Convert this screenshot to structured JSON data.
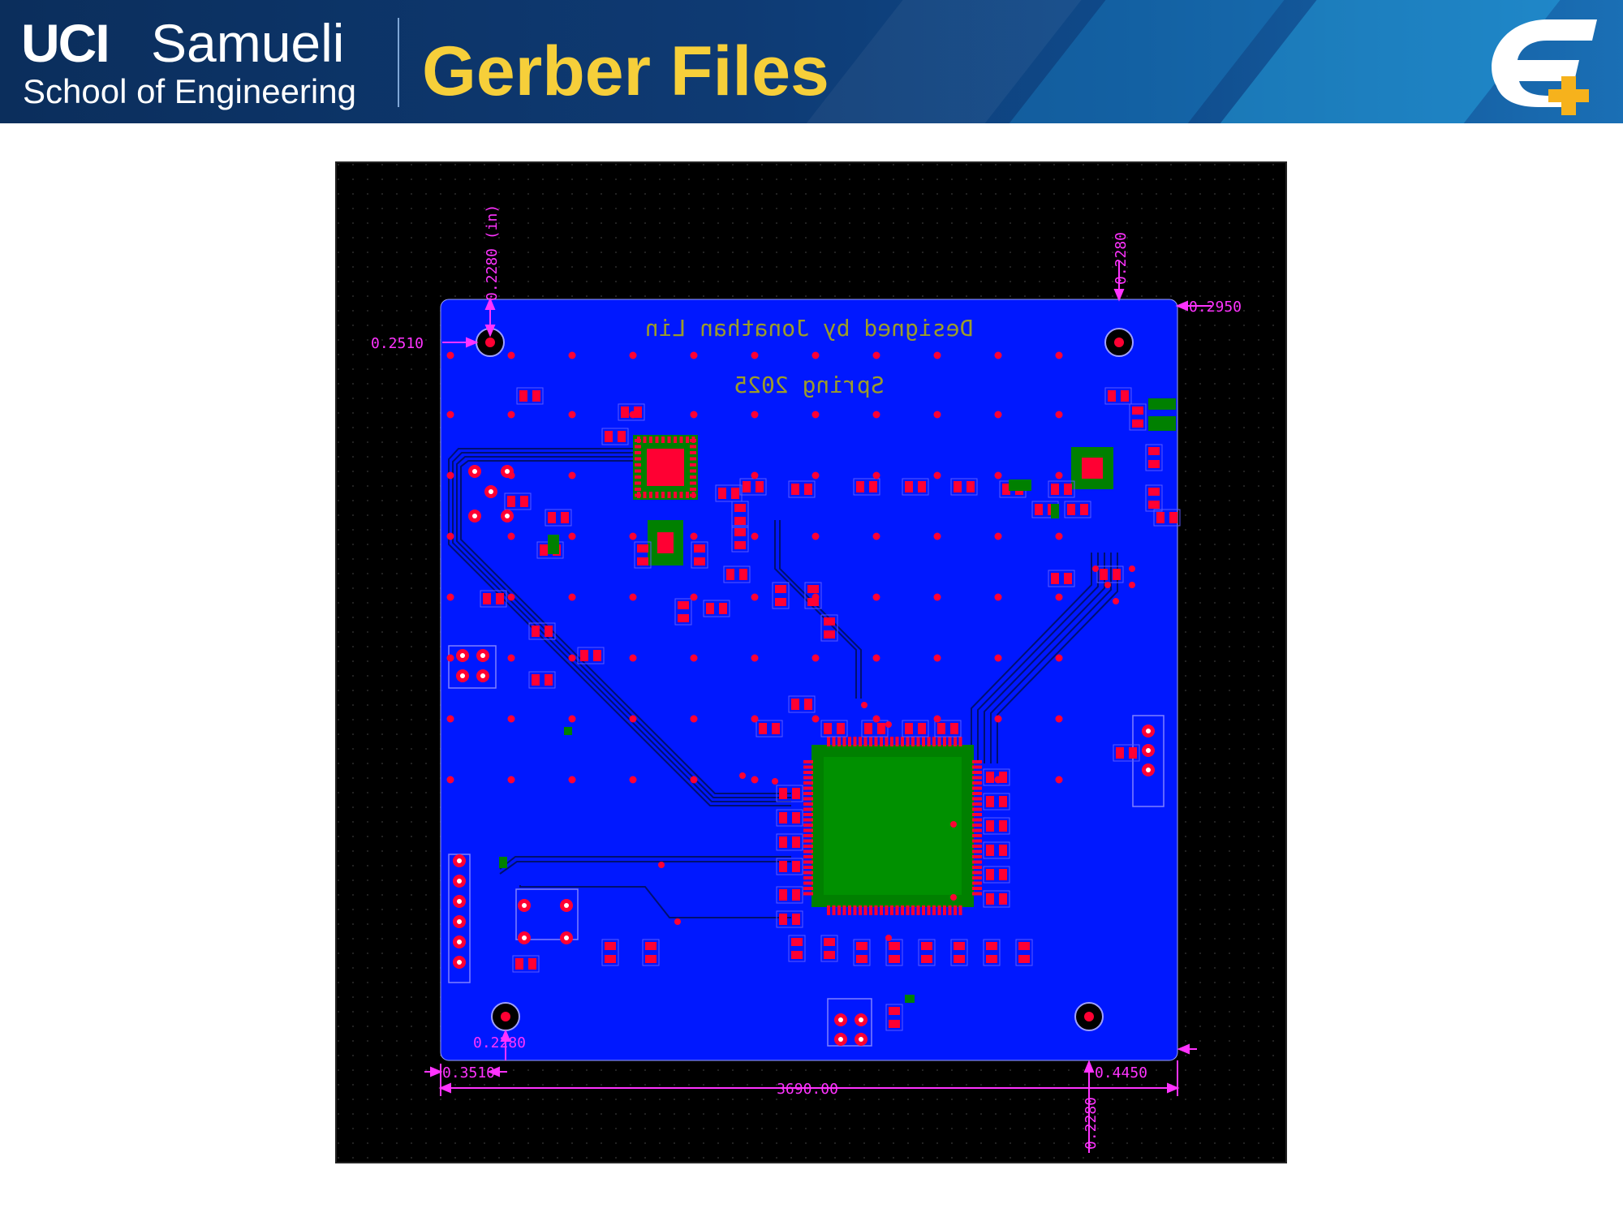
{
  "header": {
    "brand_uci": "UCI",
    "brand_samueli": "Samueli",
    "brand_school": "School of Engineering",
    "title": "Gerber Files",
    "logo_icon": "e-plus-logo-icon"
  },
  "colors": {
    "header_bg": "#0b2e5c",
    "title_yellow": "#f6cf3a",
    "board_blue": "#0018ff",
    "pad_red": "#ff0033",
    "copper_green": "#008000",
    "dimension_magenta": "#ff33ff"
  },
  "board": {
    "silk_line1": "Designed by Jonathan Lin",
    "silk_line2": "Spring 2025",
    "dimensions": {
      "left_top_vertical": "0.2280 (in)",
      "right_top_vertical": "0.2280",
      "right_top_horizontal": "0.2950",
      "left_top_horizontal": "0.2510",
      "bottom_left_vertical": "0.2280",
      "bottom_left_horizontal": "0.3510",
      "bottom_right_horizontal": "0.4450",
      "bottom_right_vertical": "0.2280",
      "overall_width": "3690.00"
    }
  }
}
